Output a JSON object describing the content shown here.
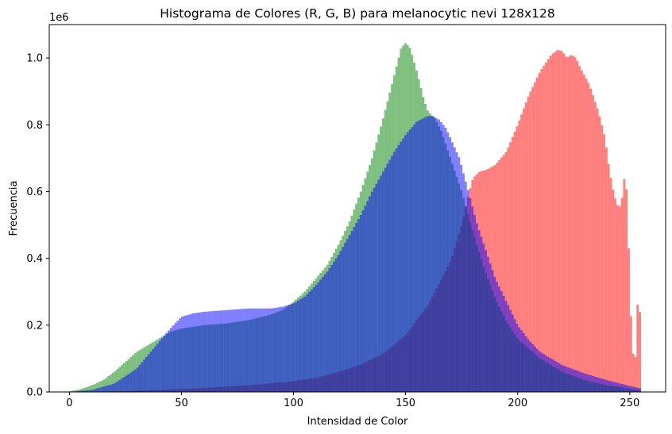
{
  "chart_data": {
    "type": "histogram",
    "title": "Histograma de Colores (R, G, B) para melanocytic nevi 128x128",
    "xlabel": "Intensidad de Color",
    "ylabel": "Frecuencia",
    "y_scale_label": "1e6",
    "xlim": [
      -9,
      266
    ],
    "ylim": [
      0,
      1.1
    ],
    "bins": 256,
    "x_ticks": [
      0,
      50,
      100,
      150,
      200,
      250
    ],
    "x_tick_labels": [
      "0",
      "50",
      "100",
      "150",
      "200",
      "250"
    ],
    "y_ticks": [
      0.0,
      0.2,
      0.4,
      0.6,
      0.8,
      1.0
    ],
    "y_tick_labels": [
      "0.0",
      "0.2",
      "0.4",
      "0.6",
      "0.8",
      "1.0"
    ],
    "alpha": 0.5,
    "grid": false,
    "series": [
      {
        "color": "#ff0000",
        "points": [
          [
            0,
            0
          ],
          [
            20,
            0.002
          ],
          [
            40,
            0.006
          ],
          [
            60,
            0.012
          ],
          [
            80,
            0.02
          ],
          [
            100,
            0.032
          ],
          [
            110,
            0.042
          ],
          [
            120,
            0.06
          ],
          [
            130,
            0.082
          ],
          [
            140,
            0.115
          ],
          [
            150,
            0.17
          ],
          [
            160,
            0.26
          ],
          [
            170,
            0.39
          ],
          [
            175,
            0.5
          ],
          [
            178,
            0.59
          ],
          [
            180,
            0.64
          ],
          [
            183,
            0.66
          ],
          [
            186,
            0.665
          ],
          [
            190,
            0.68
          ],
          [
            195,
            0.72
          ],
          [
            200,
            0.8
          ],
          [
            205,
            0.89
          ],
          [
            210,
            0.96
          ],
          [
            215,
            1.01
          ],
          [
            218,
            1.025
          ],
          [
            220,
            1.02
          ],
          [
            222,
            1.0
          ],
          [
            224,
            1.01
          ],
          [
            226,
            1.0
          ],
          [
            228,
            0.97
          ],
          [
            232,
            0.92
          ],
          [
            236,
            0.84
          ],
          [
            239,
            0.76
          ],
          [
            241,
            0.66
          ],
          [
            243,
            0.59
          ],
          [
            245,
            0.55
          ],
          [
            246,
            0.56
          ],
          [
            247,
            0.6
          ],
          [
            248,
            0.67
          ],
          [
            249,
            0.55
          ],
          [
            250,
            0.32
          ],
          [
            251,
            0.14
          ],
          [
            252,
            0.09
          ],
          [
            253,
            0.12
          ],
          [
            254,
            0.4
          ],
          [
            255,
            0.08
          ]
        ]
      },
      {
        "color": "#008000",
        "points": [
          [
            0,
            0.002
          ],
          [
            5,
            0.008
          ],
          [
            10,
            0.02
          ],
          [
            15,
            0.035
          ],
          [
            20,
            0.06
          ],
          [
            25,
            0.09
          ],
          [
            30,
            0.12
          ],
          [
            35,
            0.14
          ],
          [
            40,
            0.16
          ],
          [
            45,
            0.18
          ],
          [
            50,
            0.19
          ],
          [
            55,
            0.195
          ],
          [
            60,
            0.2
          ],
          [
            70,
            0.205
          ],
          [
            80,
            0.215
          ],
          [
            90,
            0.232
          ],
          [
            95,
            0.245
          ],
          [
            100,
            0.27
          ],
          [
            105,
            0.3
          ],
          [
            110,
            0.34
          ],
          [
            115,
            0.38
          ],
          [
            120,
            0.44
          ],
          [
            125,
            0.51
          ],
          [
            130,
            0.6
          ],
          [
            135,
            0.7
          ],
          [
            140,
            0.82
          ],
          [
            145,
            0.95
          ],
          [
            148,
            1.03
          ],
          [
            150,
            1.045
          ],
          [
            152,
            1.03
          ],
          [
            155,
            0.96
          ],
          [
            158,
            0.88
          ],
          [
            160,
            0.84
          ],
          [
            163,
            0.82
          ],
          [
            166,
            0.78
          ],
          [
            170,
            0.7
          ],
          [
            175,
            0.6
          ],
          [
            180,
            0.48
          ],
          [
            185,
            0.37
          ],
          [
            190,
            0.28
          ],
          [
            195,
            0.21
          ],
          [
            200,
            0.16
          ],
          [
            210,
            0.1
          ],
          [
            220,
            0.06
          ],
          [
            230,
            0.035
          ],
          [
            240,
            0.02
          ],
          [
            250,
            0.01
          ],
          [
            255,
            0.004
          ]
        ]
      },
      {
        "color": "#0000ff",
        "points": [
          [
            0,
            0
          ],
          [
            10,
            0.006
          ],
          [
            20,
            0.025
          ],
          [
            30,
            0.07
          ],
          [
            40,
            0.15
          ],
          [
            45,
            0.19
          ],
          [
            50,
            0.225
          ],
          [
            55,
            0.235
          ],
          [
            60,
            0.24
          ],
          [
            70,
            0.245
          ],
          [
            80,
            0.25
          ],
          [
            90,
            0.25
          ],
          [
            95,
            0.255
          ],
          [
            100,
            0.265
          ],
          [
            105,
            0.285
          ],
          [
            110,
            0.32
          ],
          [
            115,
            0.36
          ],
          [
            120,
            0.41
          ],
          [
            125,
            0.47
          ],
          [
            130,
            0.53
          ],
          [
            135,
            0.6
          ],
          [
            140,
            0.66
          ],
          [
            145,
            0.72
          ],
          [
            150,
            0.77
          ],
          [
            155,
            0.81
          ],
          [
            160,
            0.826
          ],
          [
            162,
            0.826
          ],
          [
            165,
            0.815
          ],
          [
            168,
            0.79
          ],
          [
            170,
            0.76
          ],
          [
            174,
            0.7
          ],
          [
            178,
            0.6
          ],
          [
            182,
            0.5
          ],
          [
            186,
            0.42
          ],
          [
            190,
            0.34
          ],
          [
            195,
            0.27
          ],
          [
            200,
            0.2
          ],
          [
            205,
            0.155
          ],
          [
            210,
            0.12
          ],
          [
            220,
            0.08
          ],
          [
            230,
            0.055
          ],
          [
            240,
            0.035
          ],
          [
            250,
            0.018
          ],
          [
            255,
            0.01
          ]
        ]
      }
    ]
  }
}
